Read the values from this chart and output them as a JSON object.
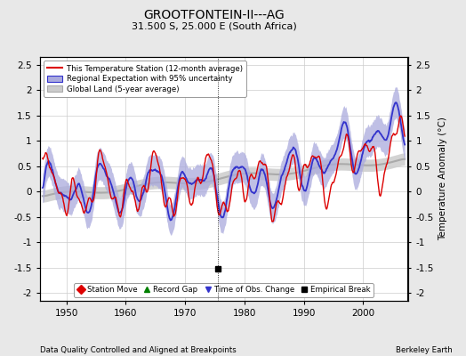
{
  "title": "GROOTFONTEIN-II---AG",
  "subtitle": "31.500 S, 25.000 E (South Africa)",
  "ylabel": "Temperature Anomaly (°C)",
  "xlabel_left": "Data Quality Controlled and Aligned at Breakpoints",
  "xlabel_right": "Berkeley Earth",
  "ylim": [
    -2.15,
    2.65
  ],
  "xlim": [
    1945.5,
    2007.5
  ],
  "xticks": [
    1950,
    1960,
    1970,
    1980,
    1990,
    2000
  ],
  "yticks_left": [
    -2,
    -1.5,
    -1,
    -0.5,
    0,
    0.5,
    1,
    1.5,
    2,
    2.5
  ],
  "yticks_right": [
    -2,
    -1.5,
    -1,
    -0.5,
    0,
    0.5,
    1,
    1.5,
    2,
    2.5
  ],
  "empirical_break_x": 1975.5,
  "empirical_break_y": -1.52,
  "background_color": "#e8e8e8",
  "plot_bg_color": "#ffffff",
  "grid_color": "#cccccc",
  "legend_labels": [
    "This Temperature Station (12-month average)",
    "Regional Expectation with 95% uncertainty",
    "Global Land (5-year average)"
  ],
  "marker_labels": [
    "Station Move",
    "Record Gap",
    "Time of Obs. Change",
    "Empirical Break"
  ],
  "station_color": "#dd0000",
  "regional_color": "#3333cc",
  "regional_fill_color": "#aaaadd",
  "global_color": "#aaaaaa",
  "global_fill_color": "#cccccc"
}
